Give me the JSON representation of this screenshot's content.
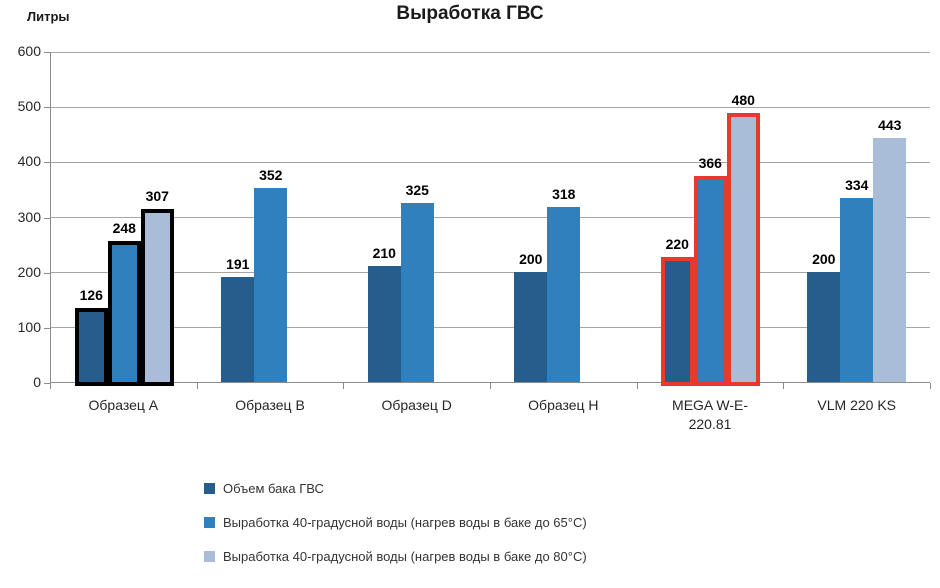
{
  "chart_data": {
    "type": "bar",
    "title": "Выработка ГВС",
    "ylabel": "Литры",
    "ylim": [
      0,
      600
    ],
    "ytick_step": 100,
    "grid": true,
    "legend_position": "bottom-left",
    "categories": [
      "Образец A",
      "Образец B",
      "Образец D",
      "Образец H",
      "MEGA W-E-\n220.81",
      "VLM 220 KS"
    ],
    "series": [
      {
        "name": "Объем бака ГВС",
        "color": "#255e8c",
        "values": [
          126,
          191,
          210,
          200,
          220,
          200
        ]
      },
      {
        "name": "Выработка 40-градусной воды (нагрев воды в баке до 65°C)",
        "color": "#2f80bc",
        "values": [
          248,
          352,
          325,
          318,
          366,
          334
        ]
      },
      {
        "name": "Выработка 40-градусной воды (нагрев воды в баке до 80°C)",
        "color": "#aabdd8",
        "values": [
          307,
          null,
          null,
          null,
          480,
          443
        ]
      }
    ],
    "group_outlines": [
      "#000000",
      null,
      null,
      null,
      "#e8392e",
      null
    ],
    "colors": {
      "axis": "#8c8c8c",
      "gridline": "#a6a6a6",
      "text": "#262626",
      "value_label": "#000000"
    }
  }
}
